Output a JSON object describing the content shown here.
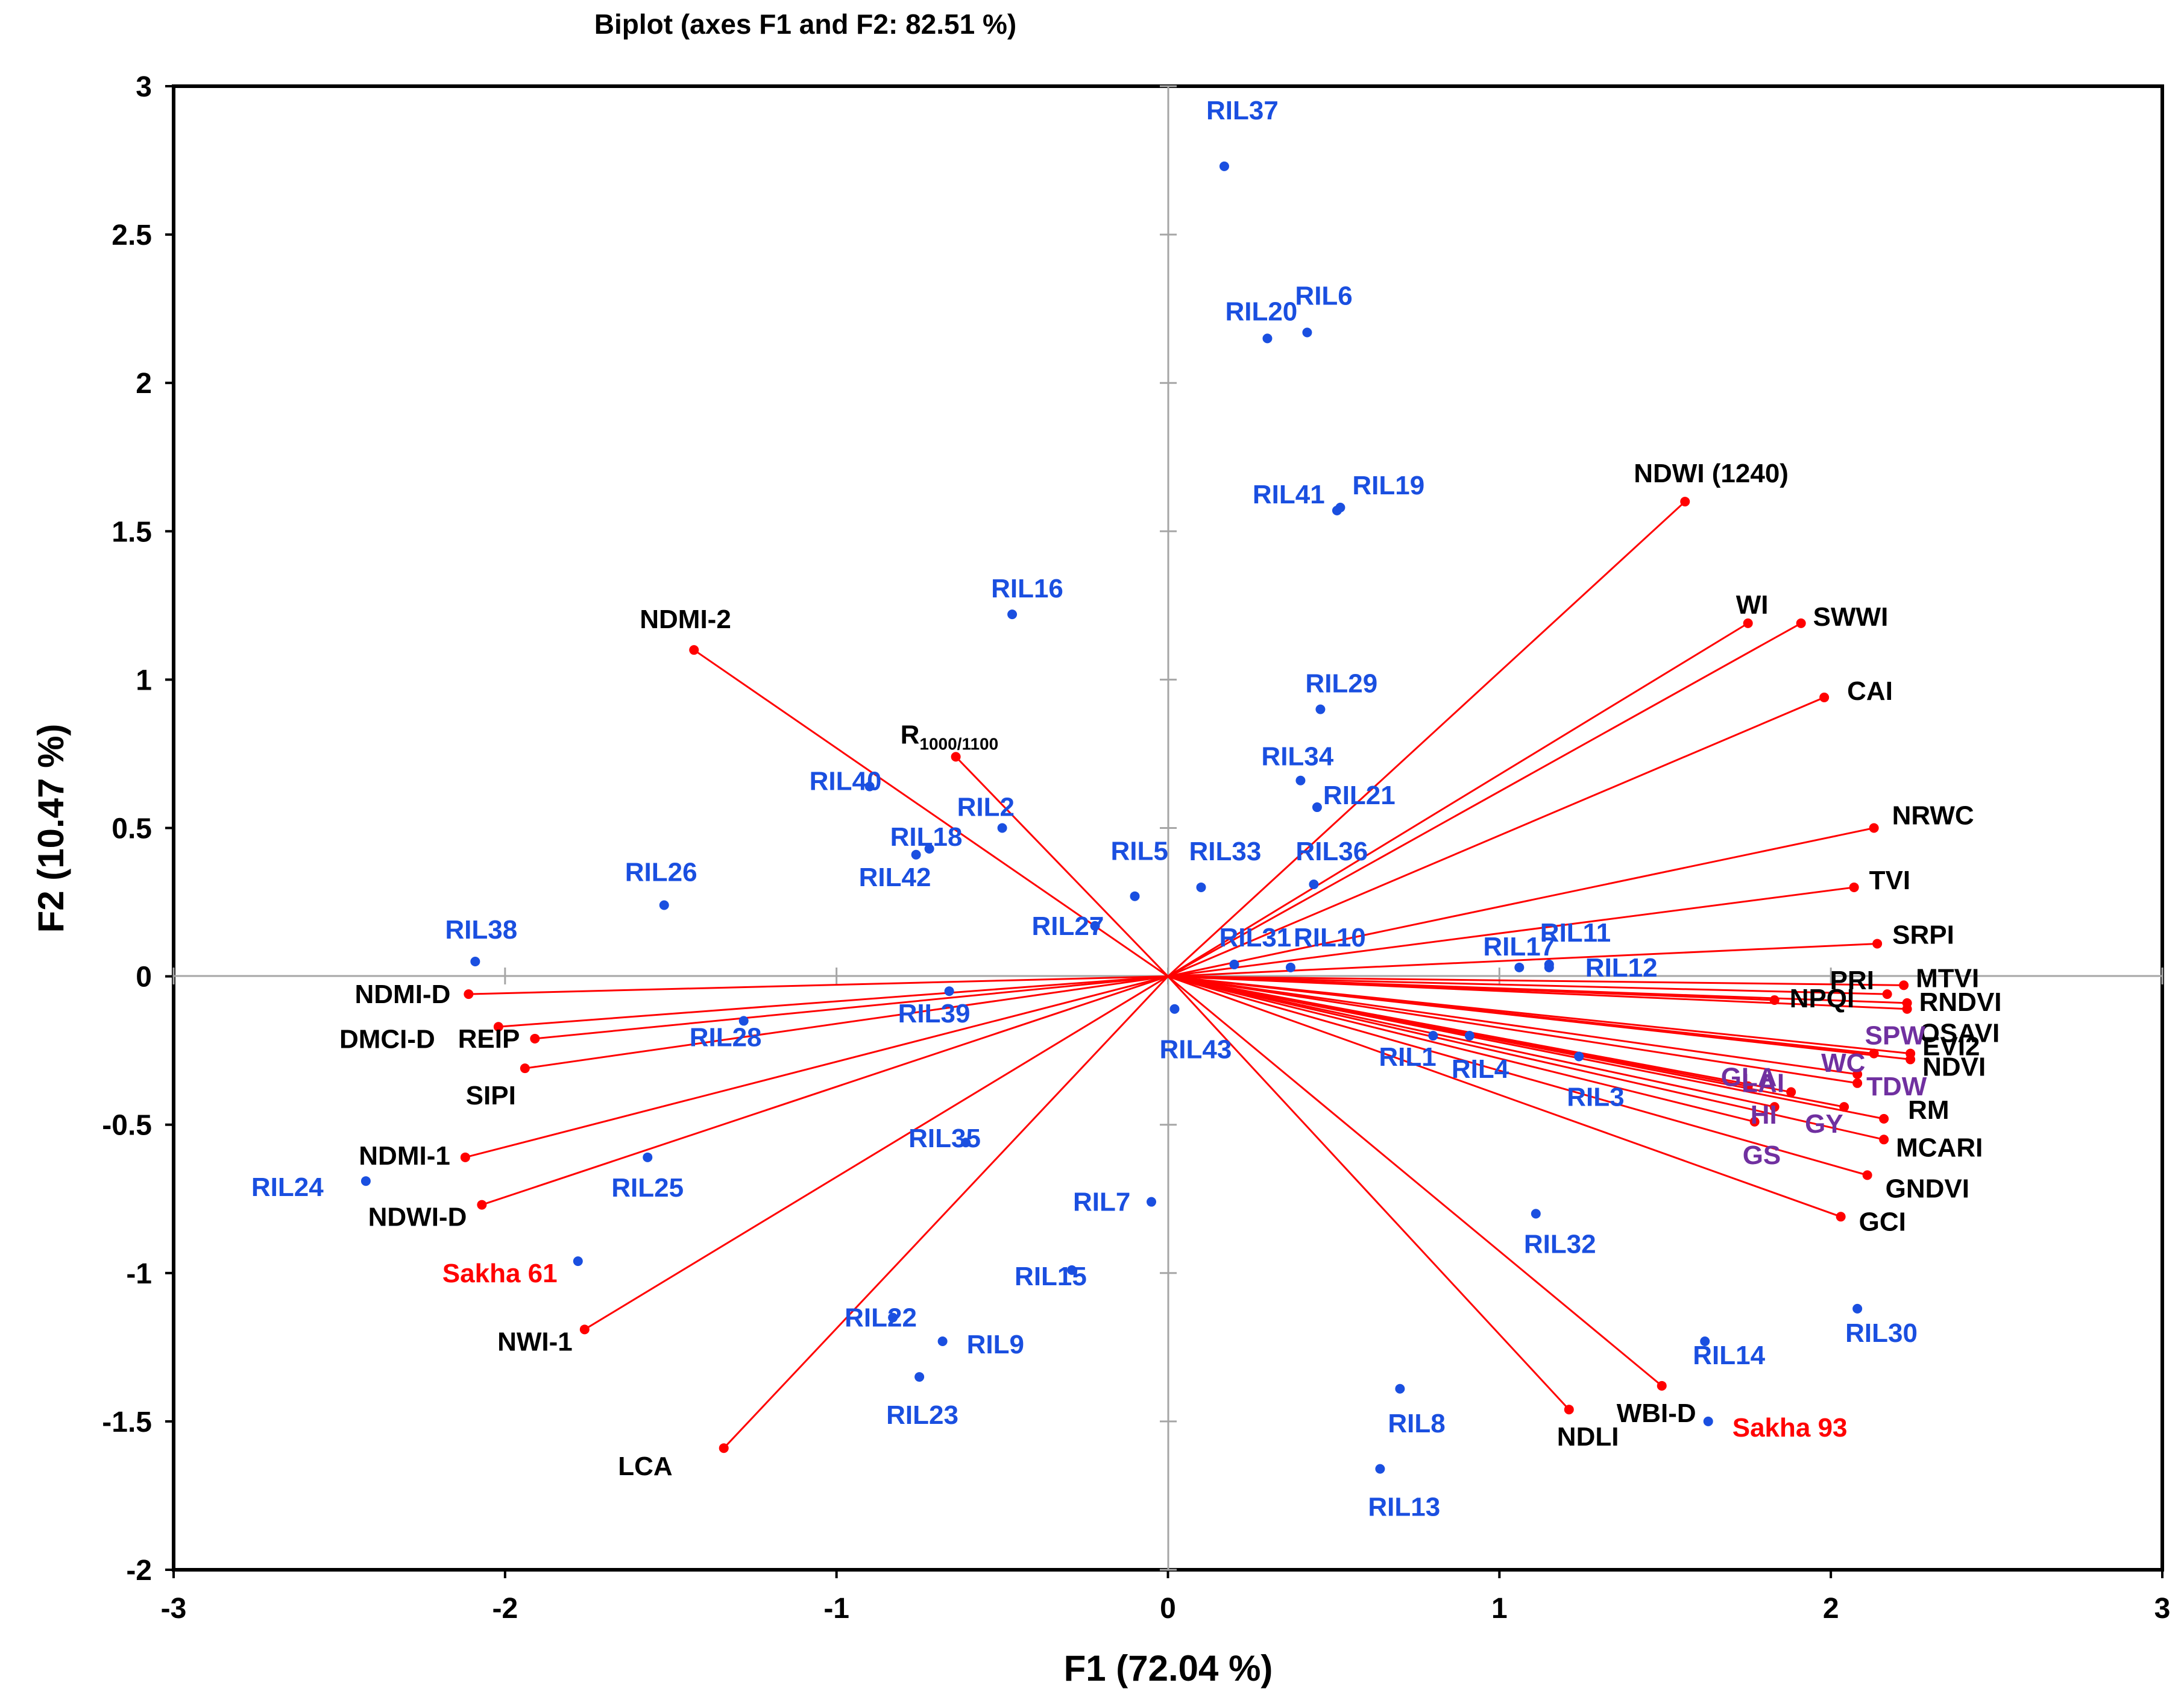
{
  "chart_data": {
    "type": "scatter",
    "title": "Biplot (axes F1 and F2: 82.51 %)",
    "xlabel": "F1 (72.04 %)",
    "ylabel": "F2 (10.47 %)",
    "xlim": [
      -3,
      3
    ],
    "ylim": [
      -2,
      3
    ],
    "x_ticks": [
      "-3",
      "-2",
      "-1",
      "0",
      "1",
      "2",
      "3"
    ],
    "y_ticks": [
      "-2",
      "-1.5",
      "-1",
      "-0.5",
      "0",
      "0.5",
      "1",
      "1.5",
      "2",
      "2.5",
      "3"
    ],
    "colors": {
      "observation": "#1a4fe0",
      "check_cultivar": "#ff0000",
      "variable": "#000000",
      "trait": "#7030a0",
      "vector": "#ff0000",
      "zero_line": "#a6a6a6"
    },
    "observations": [
      {
        "label": "RIL37",
        "x": 0.17,
        "y": 2.73,
        "color": "observation"
      },
      {
        "label": "RIL20",
        "x": 0.3,
        "y": 2.15,
        "color": "observation"
      },
      {
        "label": "RIL6",
        "x": 0.42,
        "y": 2.17,
        "color": "observation"
      },
      {
        "label": "RIL41",
        "x": 0.51,
        "y": 1.57,
        "color": "observation"
      },
      {
        "label": "RIL19",
        "x": 0.52,
        "y": 1.58,
        "color": "observation"
      },
      {
        "label": "RIL16",
        "x": -0.47,
        "y": 1.22,
        "color": "observation"
      },
      {
        "label": "RIL29",
        "x": 0.46,
        "y": 0.9,
        "color": "observation"
      },
      {
        "label": "RIL34",
        "x": 0.4,
        "y": 0.66,
        "color": "observation"
      },
      {
        "label": "RIL21",
        "x": 0.45,
        "y": 0.57,
        "color": "observation"
      },
      {
        "label": "RIL40",
        "x": -0.9,
        "y": 0.64,
        "color": "observation"
      },
      {
        "label": "RIL2",
        "x": -0.5,
        "y": 0.5,
        "color": "observation"
      },
      {
        "label": "RIL18",
        "x": -0.72,
        "y": 0.43,
        "color": "observation"
      },
      {
        "label": "RIL42",
        "x": -0.76,
        "y": 0.41,
        "color": "observation"
      },
      {
        "label": "RIL26",
        "x": -1.52,
        "y": 0.24,
        "color": "observation"
      },
      {
        "label": "RIL5",
        "x": -0.1,
        "y": 0.27,
        "color": "observation"
      },
      {
        "label": "RIL33",
        "x": 0.1,
        "y": 0.3,
        "color": "observation"
      },
      {
        "label": "RIL36",
        "x": 0.44,
        "y": 0.31,
        "color": "observation"
      },
      {
        "label": "RIL38",
        "x": -2.09,
        "y": 0.05,
        "color": "observation"
      },
      {
        "label": "RIL27",
        "x": -0.22,
        "y": 0.17,
        "color": "observation"
      },
      {
        "label": "RIL31",
        "x": 0.2,
        "y": 0.04,
        "color": "observation"
      },
      {
        "label": "RIL10",
        "x": 0.37,
        "y": 0.03,
        "color": "observation"
      },
      {
        "label": "RIL11",
        "x": 1.15,
        "y": 0.04,
        "color": "observation"
      },
      {
        "label": "RIL17",
        "x": 1.06,
        "y": 0.03,
        "color": "observation"
      },
      {
        "label": "RIL12",
        "x": 1.15,
        "y": 0.03,
        "color": "observation"
      },
      {
        "label": "RIL39",
        "x": -0.66,
        "y": -0.05,
        "color": "observation"
      },
      {
        "label": "RIL28",
        "x": -1.28,
        "y": -0.15,
        "color": "observation"
      },
      {
        "label": "RIL43",
        "x": 0.02,
        "y": -0.11,
        "color": "observation"
      },
      {
        "label": "RIL1",
        "x": 0.8,
        "y": -0.2,
        "color": "observation"
      },
      {
        "label": "RIL4",
        "x": 0.91,
        "y": -0.2,
        "color": "observation"
      },
      {
        "label": "RIL3",
        "x": 1.24,
        "y": -0.27,
        "color": "observation"
      },
      {
        "label": "RIL25",
        "x": -1.57,
        "y": -0.61,
        "color": "observation"
      },
      {
        "label": "RIL24",
        "x": -2.42,
        "y": -0.69,
        "color": "observation"
      },
      {
        "label": "RIL35",
        "x": -0.61,
        "y": -0.56,
        "color": "observation"
      },
      {
        "label": "RIL7",
        "x": -0.05,
        "y": -0.76,
        "color": "observation"
      },
      {
        "label": "RIL32",
        "x": 1.11,
        "y": -0.8,
        "color": "observation"
      },
      {
        "label": "Sakha 61",
        "x": -1.78,
        "y": -0.96,
        "color": "check_cultivar"
      },
      {
        "label": "RIL15",
        "x": -0.29,
        "y": -0.99,
        "color": "observation"
      },
      {
        "label": "RIL22",
        "x": -0.83,
        "y": -1.15,
        "color": "observation"
      },
      {
        "label": "RIL9",
        "x": -0.68,
        "y": -1.23,
        "color": "observation"
      },
      {
        "label": "RIL23",
        "x": -0.75,
        "y": -1.35,
        "color": "observation"
      },
      {
        "label": "RIL30",
        "x": 2.08,
        "y": -1.12,
        "color": "observation"
      },
      {
        "label": "RIL14",
        "x": 1.62,
        "y": -1.23,
        "color": "observation"
      },
      {
        "label": "RIL8",
        "x": 0.7,
        "y": -1.39,
        "color": "observation"
      },
      {
        "label": "Sakha 93",
        "x": 1.63,
        "y": -1.5,
        "color": "check_cultivar"
      },
      {
        "label": "RIL13",
        "x": 0.64,
        "y": -1.66,
        "color": "observation"
      }
    ],
    "variables": [
      {
        "label": "NDWI (1240)",
        "x": 1.56,
        "y": 1.6,
        "color": "variable"
      },
      {
        "label": "WI",
        "x": 1.75,
        "y": 1.19,
        "color": "variable"
      },
      {
        "label": "SWWI",
        "x": 1.91,
        "y": 1.19,
        "color": "variable"
      },
      {
        "label": "CAI",
        "x": 1.98,
        "y": 0.94,
        "color": "variable"
      },
      {
        "label": "NRWC",
        "x": 2.13,
        "y": 0.5,
        "color": "variable"
      },
      {
        "label": "TVI",
        "x": 2.07,
        "y": 0.3,
        "color": "variable"
      },
      {
        "label": "SRPI",
        "x": 2.14,
        "y": 0.11,
        "color": "variable"
      },
      {
        "label": "PRI",
        "x": 2.17,
        "y": -0.06,
        "color": "variable"
      },
      {
        "label": "MTVI",
        "x": 2.22,
        "y": -0.03,
        "color": "variable"
      },
      {
        "label": "RNDVI",
        "x": 2.23,
        "y": -0.09,
        "color": "variable"
      },
      {
        "label": "NPQI",
        "x": 1.83,
        "y": -0.08,
        "color": "variable"
      },
      {
        "label": "OSAVI",
        "x": 2.23,
        "y": -0.11,
        "color": "variable"
      },
      {
        "label": "EVI2",
        "x": 2.24,
        "y": -0.26,
        "color": "variable"
      },
      {
        "label": "NDVI",
        "x": 2.24,
        "y": -0.28,
        "color": "variable"
      },
      {
        "label": "RM",
        "x": 2.16,
        "y": -0.48,
        "color": "variable"
      },
      {
        "label": "MCARI",
        "x": 2.16,
        "y": -0.55,
        "color": "variable"
      },
      {
        "label": "GNDVI",
        "x": 2.11,
        "y": -0.67,
        "color": "variable"
      },
      {
        "label": "GCI",
        "x": 2.03,
        "y": -0.81,
        "color": "variable"
      },
      {
        "label": "WBI-D",
        "x": 1.49,
        "y": -1.38,
        "color": "variable"
      },
      {
        "label": "NDLI",
        "x": 1.21,
        "y": -1.46,
        "color": "variable"
      },
      {
        "label": "NDMI-2",
        "x": -1.43,
        "y": 1.1,
        "color": "variable"
      },
      {
        "label": "R1000/1100",
        "x": -0.64,
        "y": 0.74,
        "color": "variable"
      },
      {
        "label": "NDMI-D",
        "x": -2.11,
        "y": -0.06,
        "color": "variable"
      },
      {
        "label": "DMCI-D",
        "x": -2.02,
        "y": -0.17,
        "color": "variable"
      },
      {
        "label": "REIP",
        "x": -1.91,
        "y": -0.21,
        "color": "variable"
      },
      {
        "label": "SIPI",
        "x": -1.94,
        "y": -0.31,
        "color": "variable"
      },
      {
        "label": "NDMI-1",
        "x": -2.12,
        "y": -0.61,
        "color": "variable"
      },
      {
        "label": "NDWI-D",
        "x": -2.07,
        "y": -0.77,
        "color": "variable"
      },
      {
        "label": "NWI-1",
        "x": -1.76,
        "y": -1.19,
        "color": "variable"
      },
      {
        "label": "LCA",
        "x": -1.34,
        "y": -1.59,
        "color": "variable"
      },
      {
        "label": "SPW",
        "x": 2.13,
        "y": -0.26,
        "color": "trait"
      },
      {
        "label": "WC",
        "x": 2.08,
        "y": -0.33,
        "color": "trait"
      },
      {
        "label": "GLA",
        "x": 1.75,
        "y": -0.37,
        "color": "trait"
      },
      {
        "label": "LAI",
        "x": 1.88,
        "y": -0.39,
        "color": "trait"
      },
      {
        "label": "TDW",
        "x": 2.08,
        "y": -0.36,
        "color": "trait"
      },
      {
        "label": "HI",
        "x": 1.83,
        "y": -0.44,
        "color": "trait"
      },
      {
        "label": "GY",
        "x": 2.04,
        "y": -0.44,
        "color": "trait"
      },
      {
        "label": "GS",
        "x": 1.77,
        "y": -0.49,
        "color": "trait"
      }
    ]
  }
}
